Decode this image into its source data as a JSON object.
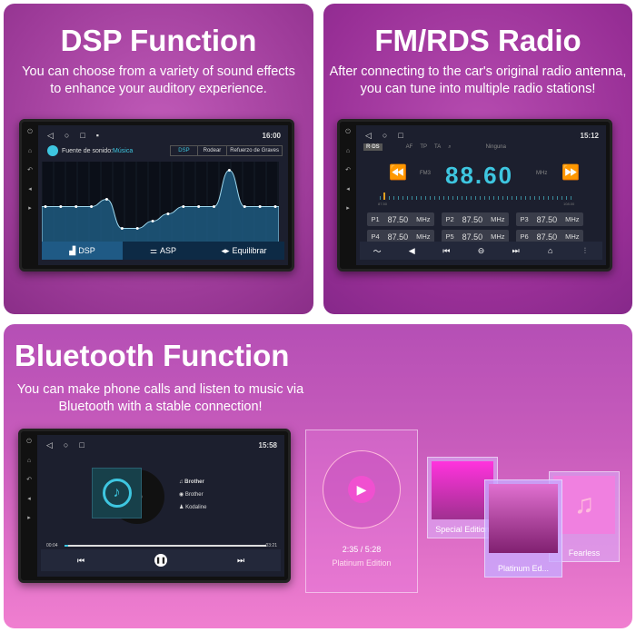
{
  "dsp": {
    "title": "DSP Function",
    "subtitle": "You can choose from a variety of sound effects to enhance your auditory experience.",
    "screen": {
      "time": "16:00",
      "source_label": "Fuente de sonido:",
      "source_value": "Música",
      "tabs": [
        "DSP",
        "Rodear",
        "Refuerzo de Graves"
      ],
      "bottom_tabs": [
        "DSP",
        "ASP",
        "Equilibrar"
      ],
      "eq_levels": [
        0,
        0,
        0,
        0,
        1,
        -3,
        -3,
        -2,
        -1,
        0,
        0,
        0,
        5,
        0,
        0,
        0
      ]
    }
  },
  "fm": {
    "title": "FM/RDS Radio",
    "subtitle": "After connecting to the car's original radio antenna, you can tune into multiple radio stations!",
    "screen": {
      "time": "15:12",
      "rds": "R·DS",
      "flags": [
        "AF",
        "TP",
        "TA"
      ],
      "pty": "Ninguna",
      "band": "FM3",
      "frequency": "88.60",
      "unit": "MHz",
      "range_min": "87.50",
      "range_max": "108.00",
      "presets": [
        {
          "name": "P1",
          "freq": "87.50"
        },
        {
          "name": "P2",
          "freq": "87.50"
        },
        {
          "name": "P3",
          "freq": "87.50"
        },
        {
          "name": "P4",
          "freq": "87.50"
        },
        {
          "name": "P5",
          "freq": "87.50"
        },
        {
          "name": "P6",
          "freq": "87.50"
        }
      ]
    }
  },
  "bt": {
    "title": "Bluetooth Function",
    "subtitle": "You can make phone calls and listen to music via Bluetooth with a stable connection!",
    "screen": {
      "time": "15:58",
      "song": "Brother",
      "album": "Brother",
      "artist": "Kodaline",
      "elapsed": "00:04",
      "total": "03:21",
      "progress": 0.02
    },
    "player": {
      "time": "2:35 / 5:28",
      "album": "Platinum Edition"
    },
    "albums": [
      "Special Edition",
      "Platinum Ed...",
      "Fearless"
    ]
  },
  "colors": {
    "accent": "#3ec6e0"
  }
}
